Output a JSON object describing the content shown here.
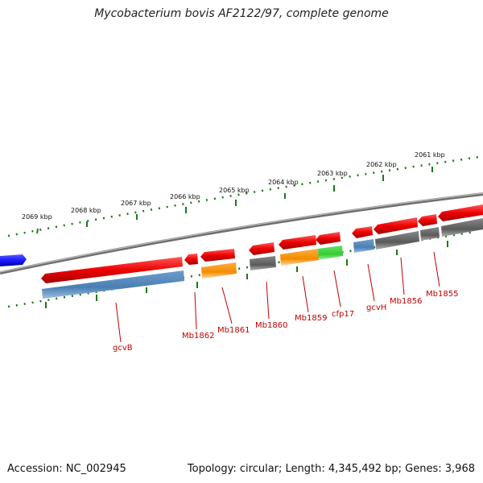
{
  "title": "Mycobacterium bovis AF2122/97, complete genome",
  "footer": {
    "accession": "Accession: NC_002945",
    "stats": "Topology: circular; Length: 4,345,492 bp; Genes: 3,968"
  },
  "ruler_labels": [
    "2069 kbp",
    "2068 kbp",
    "2067 kbp",
    "2066 kbp",
    "2065 kbp",
    "2064 kbp",
    "2063 kbp",
    "2062 kbp",
    "2061 kbp"
  ],
  "gene_labels": [
    "gcvB",
    "Mb1862",
    "Mb1861",
    "Mb1860",
    "Mb1859",
    "cfp17",
    "gcvH",
    "Mb1856",
    "Mb1855"
  ],
  "colors": {
    "forward_gene": "#ee0000",
    "reverse_blue": "#1a1aff",
    "cds_steelblue": "#4a7fb5",
    "cds_orange": "#f28c00",
    "cds_green": "#33cc33",
    "cds_gray": "#666666",
    "backbone": "#888888",
    "ruler": "#1a7a1a",
    "label": "#c00000"
  }
}
